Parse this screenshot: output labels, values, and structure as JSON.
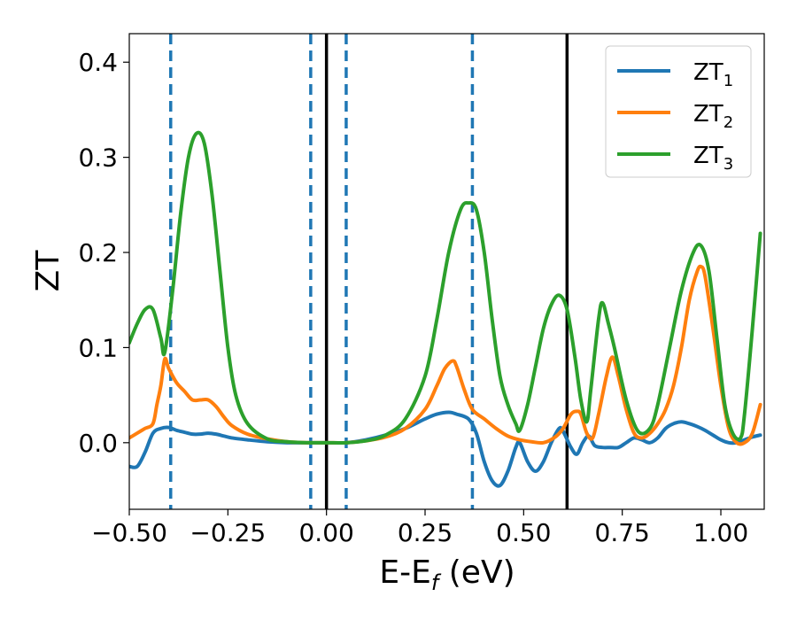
{
  "chart_data": {
    "type": "line",
    "xlabel": "E-E",
    "xlabel_sub": "f",
    "xlabel_unit": " (eV)",
    "ylabel": "ZT",
    "xlim": [
      -0.5,
      1.11
    ],
    "ylim": [
      -0.07,
      0.43
    ],
    "xticks": [
      -0.5,
      -0.25,
      0.0,
      0.25,
      0.5,
      0.75,
      1.0
    ],
    "xtick_labels": [
      "−0.50",
      "−0.25",
      "0.00",
      "0.25",
      "0.50",
      "0.75",
      "1.00"
    ],
    "yticks": [
      0.0,
      0.1,
      0.2,
      0.3,
      0.4
    ],
    "ytick_labels": [
      "0.0",
      "0.1",
      "0.2",
      "0.3",
      "0.4"
    ],
    "legend_position": "top-right",
    "grid": false,
    "series": [
      {
        "name": "ZT",
        "sub": "1",
        "color": "#1f77b4",
        "x": [
          -0.5,
          -0.48,
          -0.46,
          -0.44,
          -0.42,
          -0.4,
          -0.38,
          -0.36,
          -0.34,
          -0.32,
          -0.3,
          -0.28,
          -0.26,
          -0.24,
          -0.2,
          -0.15,
          -0.1,
          -0.05,
          0.0,
          0.05,
          0.1,
          0.15,
          0.2,
          0.25,
          0.28,
          0.31,
          0.33,
          0.36,
          0.38,
          0.4,
          0.42,
          0.44,
          0.46,
          0.48,
          0.49,
          0.51,
          0.53,
          0.55,
          0.57,
          0.59,
          0.6,
          0.62,
          0.635,
          0.65,
          0.665,
          0.68,
          0.7,
          0.72,
          0.74,
          0.76,
          0.78,
          0.8,
          0.82,
          0.84,
          0.86,
          0.88,
          0.9,
          0.92,
          0.94,
          0.96,
          0.98,
          1.0,
          1.02,
          1.04,
          1.06,
          1.08,
          1.1
        ],
        "y": [
          -0.025,
          -0.025,
          -0.01,
          0.01,
          0.015,
          0.016,
          0.013,
          0.011,
          0.009,
          0.009,
          0.01,
          0.009,
          0.007,
          0.005,
          0.003,
          0.001,
          0.0,
          0.0,
          0.0,
          0.0,
          0.003,
          0.008,
          0.015,
          0.025,
          0.03,
          0.032,
          0.03,
          0.025,
          0.01,
          -0.02,
          -0.04,
          -0.045,
          -0.03,
          -0.005,
          0.0,
          -0.02,
          -0.03,
          -0.02,
          0.0,
          0.015,
          0.012,
          -0.005,
          -0.012,
          0.0,
          0.007,
          -0.003,
          -0.005,
          -0.005,
          -0.005,
          0.0,
          0.005,
          0.003,
          0.0,
          0.005,
          0.015,
          0.02,
          0.022,
          0.02,
          0.017,
          0.013,
          0.008,
          0.003,
          0.0,
          0.0,
          0.003,
          0.006,
          0.008
        ]
      },
      {
        "name": "ZT",
        "sub": "2",
        "color": "#ff7f0e",
        "x": [
          -0.5,
          -0.48,
          -0.46,
          -0.44,
          -0.43,
          -0.42,
          -0.41,
          -0.4,
          -0.38,
          -0.36,
          -0.34,
          -0.32,
          -0.3,
          -0.28,
          -0.26,
          -0.24,
          -0.2,
          -0.15,
          -0.1,
          -0.05,
          0.0,
          0.05,
          0.1,
          0.15,
          0.2,
          0.25,
          0.28,
          0.3,
          0.32,
          0.33,
          0.35,
          0.37,
          0.4,
          0.43,
          0.46,
          0.49,
          0.52,
          0.55,
          0.58,
          0.6,
          0.62,
          0.635,
          0.645,
          0.66,
          0.675,
          0.69,
          0.71,
          0.725,
          0.74,
          0.76,
          0.78,
          0.8,
          0.82,
          0.84,
          0.86,
          0.88,
          0.9,
          0.92,
          0.94,
          0.95,
          0.96,
          0.98,
          1.0,
          1.02,
          1.04,
          1.06,
          1.08,
          1.1
        ],
        "y": [
          0.005,
          0.01,
          0.015,
          0.02,
          0.04,
          0.06,
          0.088,
          0.078,
          0.063,
          0.054,
          0.045,
          0.045,
          0.045,
          0.038,
          0.027,
          0.018,
          0.009,
          0.004,
          0.001,
          0.0,
          0.0,
          0.0,
          0.002,
          0.006,
          0.015,
          0.035,
          0.06,
          0.078,
          0.086,
          0.08,
          0.055,
          0.035,
          0.025,
          0.015,
          0.007,
          0.003,
          0.001,
          0.0,
          0.006,
          0.015,
          0.03,
          0.033,
          0.03,
          0.01,
          0.005,
          0.03,
          0.07,
          0.09,
          0.07,
          0.035,
          0.01,
          0.005,
          0.01,
          0.02,
          0.035,
          0.06,
          0.1,
          0.15,
          0.18,
          0.185,
          0.175,
          0.12,
          0.06,
          0.015,
          0.0,
          0.0,
          0.01,
          0.04
        ]
      },
      {
        "name": "ZT",
        "sub": "3",
        "color": "#2ca02c",
        "x": [
          -0.5,
          -0.48,
          -0.46,
          -0.44,
          -0.42,
          -0.41,
          -0.39,
          -0.37,
          -0.35,
          -0.33,
          -0.31,
          -0.29,
          -0.27,
          -0.25,
          -0.23,
          -0.2,
          -0.15,
          -0.1,
          -0.05,
          0.0,
          0.05,
          0.1,
          0.15,
          0.2,
          0.25,
          0.28,
          0.31,
          0.34,
          0.36,
          0.38,
          0.4,
          0.42,
          0.44,
          0.46,
          0.48,
          0.49,
          0.51,
          0.53,
          0.55,
          0.57,
          0.59,
          0.61,
          0.63,
          0.645,
          0.66,
          0.67,
          0.69,
          0.7,
          0.715,
          0.73,
          0.76,
          0.79,
          0.82,
          0.84,
          0.87,
          0.9,
          0.93,
          0.95,
          0.97,
          0.99,
          1.01,
          1.03,
          1.05,
          1.06,
          1.08,
          1.1
        ],
        "y": [
          0.105,
          0.125,
          0.14,
          0.14,
          0.11,
          0.095,
          0.16,
          0.24,
          0.3,
          0.325,
          0.315,
          0.26,
          0.18,
          0.1,
          0.05,
          0.02,
          0.004,
          0.001,
          0.0,
          0.0,
          0.0,
          0.002,
          0.008,
          0.025,
          0.07,
          0.13,
          0.2,
          0.245,
          0.252,
          0.245,
          0.2,
          0.13,
          0.07,
          0.04,
          0.02,
          0.013,
          0.04,
          0.08,
          0.12,
          0.145,
          0.155,
          0.14,
          0.09,
          0.045,
          0.022,
          0.055,
          0.13,
          0.147,
          0.125,
          0.1,
          0.045,
          0.012,
          0.015,
          0.04,
          0.1,
          0.16,
          0.2,
          0.207,
          0.18,
          0.11,
          0.04,
          0.01,
          0.005,
          0.03,
          0.12,
          0.22
        ]
      }
    ],
    "vlines": [
      {
        "x": -0.395,
        "style": "dashed",
        "color": "#1f77b4"
      },
      {
        "x": -0.04,
        "style": "dashed",
        "color": "#1f77b4"
      },
      {
        "x": 0.05,
        "style": "dashed",
        "color": "#1f77b4"
      },
      {
        "x": 0.37,
        "style": "dashed",
        "color": "#1f77b4"
      },
      {
        "x": 0.0,
        "style": "solid",
        "color": "#000000"
      },
      {
        "x": 0.61,
        "style": "solid",
        "color": "#000000"
      }
    ]
  }
}
